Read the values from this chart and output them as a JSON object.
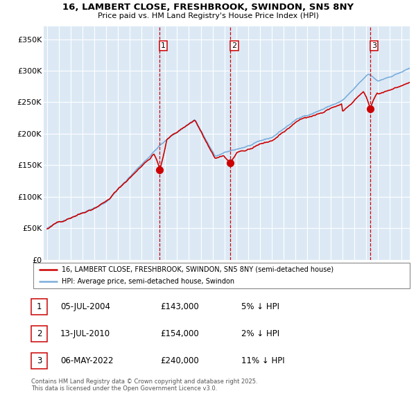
{
  "title1": "16, LAMBERT CLOSE, FRESHBROOK, SWINDON, SN5 8NY",
  "title2": "Price paid vs. HM Land Registry's House Price Index (HPI)",
  "legend_line1": "16, LAMBERT CLOSE, FRESHBROOK, SWINDON, SN5 8NY (semi-detached house)",
  "legend_line2": "HPI: Average price, semi-detached house, Swindon",
  "transaction1": {
    "num": "1",
    "date": "05-JUL-2004",
    "price": "£143,000",
    "pct": "5% ↓ HPI"
  },
  "transaction2": {
    "num": "2",
    "date": "13-JUL-2010",
    "price": "£154,000",
    "pct": "2% ↓ HPI"
  },
  "transaction3": {
    "num": "3",
    "date": "06-MAY-2022",
    "price": "£240,000",
    "pct": "11% ↓ HPI"
  },
  "footnote1": "Contains HM Land Registry data © Crown copyright and database right 2025.",
  "footnote2": "This data is licensed under the Open Government Licence v3.0.",
  "hpi_color": "#7aaddb",
  "price_color": "#cc0000",
  "marker_color": "#cc0000",
  "bg_color": "#dce9f5",
  "grid_color": "#ffffff",
  "vline_color": "#cc0000",
  "ylim": [
    0,
    370000
  ],
  "yticks": [
    0,
    50000,
    100000,
    150000,
    200000,
    250000,
    300000,
    350000
  ],
  "ytick_labels": [
    "£0",
    "£50K",
    "£100K",
    "£150K",
    "£200K",
    "£250K",
    "£300K",
    "£350K"
  ],
  "transaction1_x": 2004.5,
  "transaction2_x": 2010.5,
  "transaction3_x": 2022.35,
  "transaction1_y": 143000,
  "transaction2_y": 154000,
  "transaction3_y": 240000,
  "xlim_start": 1994.7,
  "xlim_end": 2025.7,
  "xticks": [
    1995,
    1996,
    1997,
    1998,
    1999,
    2000,
    2001,
    2002,
    2003,
    2004,
    2005,
    2006,
    2007,
    2008,
    2009,
    2010,
    2011,
    2012,
    2013,
    2014,
    2015,
    2016,
    2017,
    2018,
    2019,
    2020,
    2021,
    2022,
    2023,
    2024,
    2025
  ]
}
